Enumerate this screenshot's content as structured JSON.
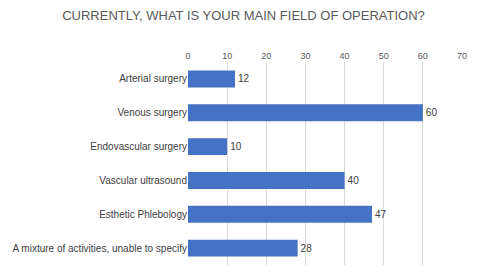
{
  "chart_data": {
    "type": "bar",
    "orientation": "horizontal",
    "title": "CURRENTLY, WHAT IS YOUR MAIN FIELD OF OPERATION?",
    "categories": [
      "Arterial surgery",
      "Venous surgery",
      "Endovascular surgery",
      "Vascular ultrasound",
      "Esthetic Phlebology",
      "A mixture of activities, unable to specify"
    ],
    "values": [
      12,
      60,
      10,
      40,
      47,
      28
    ],
    "color": "#4472c4",
    "xlim": [
      0,
      70
    ],
    "xticks": [
      0,
      10,
      20,
      30,
      40,
      50,
      60,
      70
    ],
    "grid": true,
    "data_labels": true
  }
}
